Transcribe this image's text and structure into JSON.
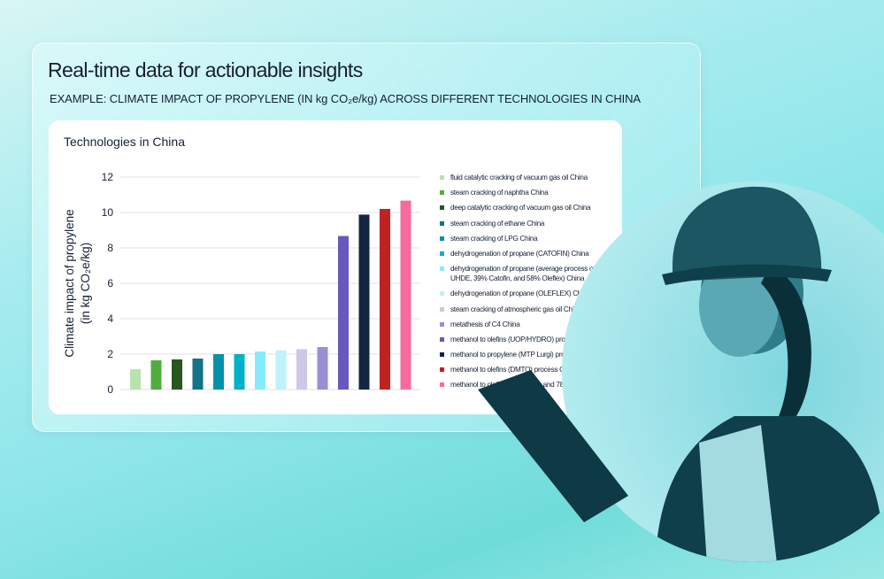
{
  "header": {
    "title": "Real-time data for actionable insights",
    "subtitle": "EXAMPLE: CLIMATE IMPACT OF PROPYLENE (IN kg CO₂e/kg) ACROSS DIFFERENT TECHNOLOGIES IN CHINA"
  },
  "chart_data": {
    "type": "bar",
    "title": "Technologies in China",
    "ylabel_line1": "Climate impact of propylene",
    "ylabel_line2": "(in kg CO₂e/kg)",
    "ylim": [
      0,
      12
    ],
    "yticks": [
      0,
      2,
      4,
      6,
      8,
      10,
      12
    ],
    "grid": true,
    "legend_position": "right",
    "categories": [
      "fluid catalytic cracking of vacuum gas oil China",
      "steam cracking of naphtha China",
      "deep catalytic cracking of vacuum gas oil China",
      "steam cracking of ethane China",
      "steam cracking of LPG China",
      "dehydrogenation of propane (CATOFIN) China",
      "dehydrogenation of propane (average process of 3% UHDE, 39% Catofin, and 58% Oleflex) China",
      "dehydrogenation of propane (OLEFLEX) China",
      "steam cracking of atmospheric gas oil China",
      "metathesis of C4 China",
      "methanol to olefins (UOP/HYDRO) process China",
      "methanol to propylene (MTP Lurgi) process China",
      "methanol to olefins (DMTO) process China",
      "methanol to olefins (22% UOP, and 78% DMTO) average"
    ],
    "values": [
      1.15,
      1.65,
      1.7,
      1.75,
      2.0,
      2.0,
      2.15,
      2.22,
      2.28,
      2.4,
      8.67,
      9.88,
      10.2,
      10.67
    ],
    "colors": [
      "#b9e3ad",
      "#52ad3e",
      "#27561f",
      "#137387",
      "#0592a8",
      "#00b1ca",
      "#86ecfc",
      "#bff2fa",
      "#ccc8e8",
      "#9a8fd3",
      "#6957be",
      "#13263f",
      "#c02222",
      "#f46b9c"
    ]
  }
}
